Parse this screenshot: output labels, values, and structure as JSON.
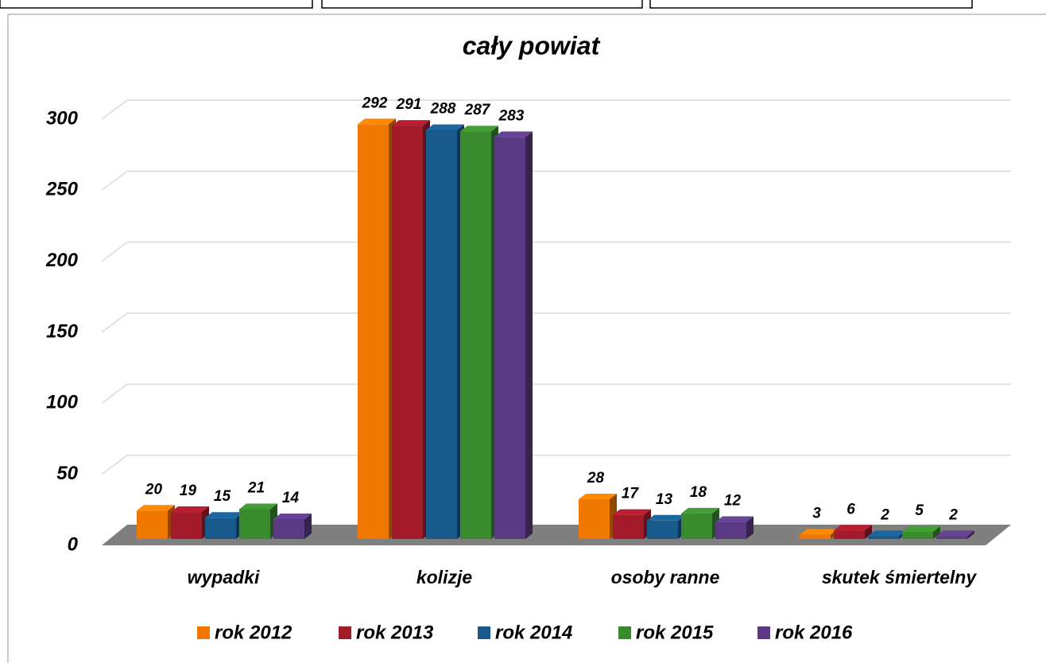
{
  "chart_data": {
    "type": "bar3d",
    "title": "cały powiat",
    "categories": [
      "wypadki",
      "kolizje",
      "osoby ranne",
      "skutek śmiertelny"
    ],
    "series": [
      {
        "name": "rok 2012",
        "color": "#f07800",
        "values": [
          20,
          292,
          28,
          3
        ]
      },
      {
        "name": "rok 2013",
        "color": "#a31a2a",
        "values": [
          19,
          291,
          17,
          6
        ]
      },
      {
        "name": "rok 2014",
        "color": "#195a8c",
        "values": [
          15,
          288,
          13,
          2
        ]
      },
      {
        "name": "rok 2015",
        "color": "#3a8a2e",
        "values": [
          21,
          287,
          18,
          5
        ]
      },
      {
        "name": "rok 2016",
        "color": "#5a3a82",
        "values": [
          14,
          283,
          12,
          2
        ]
      }
    ],
    "ylim": [
      0,
      300
    ],
    "yticks": [
      0,
      50,
      100,
      150,
      200,
      250,
      300
    ],
    "grid": true,
    "legend": "bottom"
  }
}
